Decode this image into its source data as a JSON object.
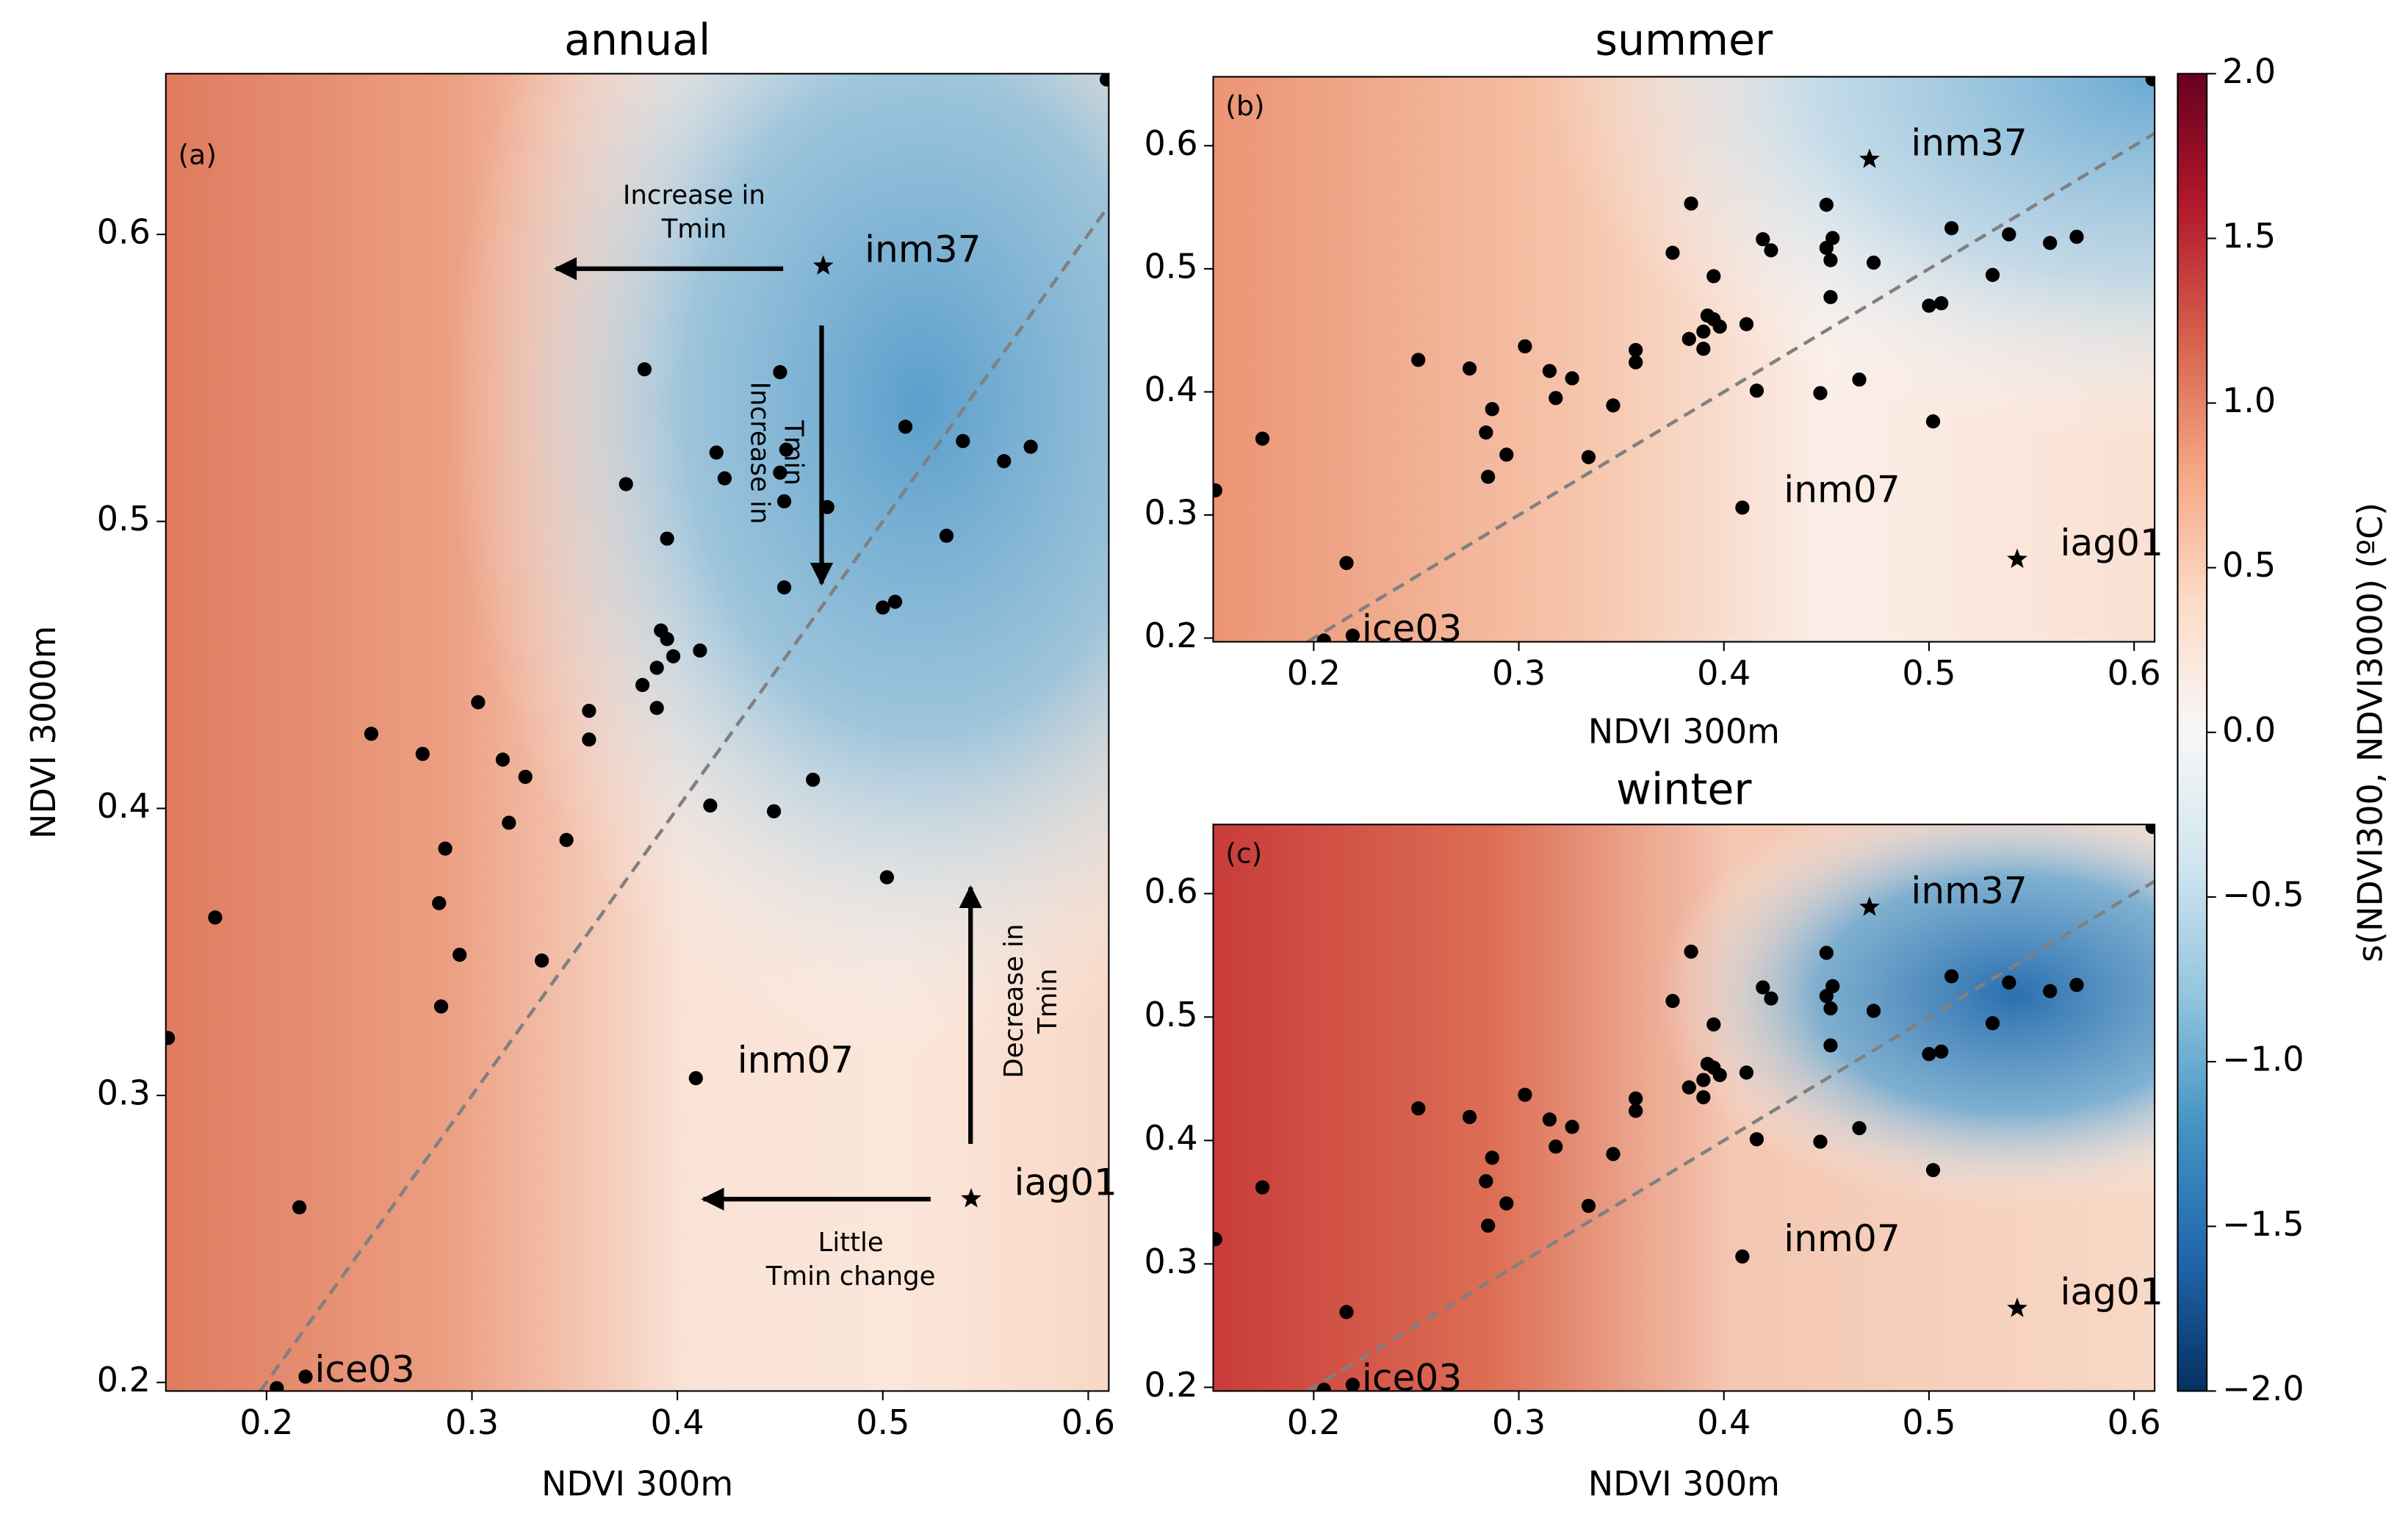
{
  "chart_data": [
    {
      "type": "scatter",
      "title": "annual",
      "panel_label": "(a)",
      "xlabel": "NDVI 300m",
      "ylabel": "NDVI 3000m",
      "xlim": [
        0.151,
        0.61
      ],
      "ylim": [
        0.197,
        0.656
      ],
      "xticks": [
        0.2,
        0.3,
        0.4,
        0.5,
        0.6
      ],
      "yticks": [
        0.2,
        0.3,
        0.4,
        0.5,
        0.6
      ],
      "color": "#000000",
      "diagonal": true,
      "x": [
        0.152,
        0.175,
        0.216,
        0.205,
        0.251,
        0.276,
        0.303,
        0.315,
        0.326,
        0.318,
        0.287,
        0.284,
        0.294,
        0.285,
        0.334,
        0.346,
        0.357,
        0.357,
        0.375,
        0.384,
        0.383,
        0.39,
        0.392,
        0.395,
        0.39,
        0.395,
        0.398,
        0.411,
        0.416,
        0.419,
        0.423,
        0.45,
        0.45,
        0.453,
        0.452,
        0.452,
        0.447,
        0.466,
        0.473,
        0.511,
        0.539,
        0.559,
        0.572,
        0.531,
        0.5,
        0.506,
        0.502,
        0.609
      ],
      "y": [
        0.32,
        0.362,
        0.261,
        0.198,
        0.426,
        0.419,
        0.437,
        0.417,
        0.411,
        0.395,
        0.386,
        0.367,
        0.349,
        0.331,
        0.347,
        0.389,
        0.434,
        0.424,
        0.513,
        0.553,
        0.443,
        0.449,
        0.462,
        0.459,
        0.435,
        0.494,
        0.453,
        0.455,
        0.401,
        0.524,
        0.515,
        0.552,
        0.517,
        0.525,
        0.507,
        0.477,
        0.399,
        0.41,
        0.505,
        0.533,
        0.528,
        0.521,
        0.526,
        0.495,
        0.47,
        0.472,
        0.376,
        0.654
      ],
      "labeled_points": [
        {
          "label": "inm37",
          "x": 0.471,
          "y": 0.589,
          "marker": "star"
        },
        {
          "label": "iag01",
          "x": 0.543,
          "y": 0.264,
          "marker": "star"
        },
        {
          "label": "inm07",
          "x": 0.409,
          "y": 0.306,
          "marker": "dot"
        },
        {
          "label": "ice03",
          "x": 0.219,
          "y": 0.202,
          "marker": "dot"
        }
      ],
      "annotations": [
        [
          "Increase in",
          "Tmin"
        ],
        [
          "Increase in",
          "Tmin"
        ],
        [
          "Decrease in",
          "Tmin"
        ],
        [
          "Little",
          "Tmin change"
        ]
      ]
    },
    {
      "type": "scatter",
      "title": "summer",
      "panel_label": "(b)",
      "xlabel": "NDVI 300m",
      "xlim": [
        0.151,
        0.61
      ],
      "ylim": [
        0.197,
        0.656
      ],
      "xticks": [
        0.2,
        0.3,
        0.4,
        0.5,
        0.6
      ],
      "yticks": [
        0.2,
        0.3,
        0.4,
        0.5,
        0.6
      ],
      "color": "#000000",
      "diagonal": true,
      "x": [
        0.152,
        0.175,
        0.216,
        0.205,
        0.251,
        0.276,
        0.303,
        0.315,
        0.326,
        0.318,
        0.287,
        0.284,
        0.294,
        0.285,
        0.334,
        0.346,
        0.357,
        0.357,
        0.375,
        0.384,
        0.383,
        0.39,
        0.392,
        0.395,
        0.39,
        0.395,
        0.398,
        0.411,
        0.416,
        0.419,
        0.423,
        0.45,
        0.45,
        0.453,
        0.452,
        0.452,
        0.447,
        0.466,
        0.473,
        0.511,
        0.539,
        0.559,
        0.572,
        0.531,
        0.5,
        0.506,
        0.502,
        0.609
      ],
      "y": [
        0.32,
        0.362,
        0.261,
        0.198,
        0.426,
        0.419,
        0.437,
        0.417,
        0.411,
        0.395,
        0.386,
        0.367,
        0.349,
        0.331,
        0.347,
        0.389,
        0.434,
        0.424,
        0.513,
        0.553,
        0.443,
        0.449,
        0.462,
        0.459,
        0.435,
        0.494,
        0.453,
        0.455,
        0.401,
        0.524,
        0.515,
        0.552,
        0.517,
        0.525,
        0.507,
        0.477,
        0.399,
        0.41,
        0.505,
        0.533,
        0.528,
        0.521,
        0.526,
        0.495,
        0.47,
        0.472,
        0.376,
        0.654
      ],
      "labeled_points": [
        {
          "label": "inm37",
          "x": 0.471,
          "y": 0.589,
          "marker": "star"
        },
        {
          "label": "iag01",
          "x": 0.543,
          "y": 0.264,
          "marker": "star"
        },
        {
          "label": "inm07",
          "x": 0.409,
          "y": 0.306,
          "marker": "dot"
        },
        {
          "label": "ice03",
          "x": 0.219,
          "y": 0.202,
          "marker": "dot"
        }
      ]
    },
    {
      "type": "scatter",
      "title": "winter",
      "panel_label": "(c)",
      "xlabel": "NDVI 300m",
      "xlim": [
        0.151,
        0.61
      ],
      "ylim": [
        0.197,
        0.656
      ],
      "xticks": [
        0.2,
        0.3,
        0.4,
        0.5,
        0.6
      ],
      "yticks": [
        0.2,
        0.3,
        0.4,
        0.5,
        0.6
      ],
      "color": "#000000",
      "diagonal": true,
      "x": [
        0.152,
        0.175,
        0.216,
        0.205,
        0.251,
        0.276,
        0.303,
        0.315,
        0.326,
        0.318,
        0.287,
        0.284,
        0.294,
        0.285,
        0.334,
        0.346,
        0.357,
        0.357,
        0.375,
        0.384,
        0.383,
        0.39,
        0.392,
        0.395,
        0.39,
        0.395,
        0.398,
        0.411,
        0.416,
        0.419,
        0.423,
        0.45,
        0.45,
        0.453,
        0.452,
        0.452,
        0.447,
        0.466,
        0.473,
        0.511,
        0.539,
        0.559,
        0.572,
        0.531,
        0.5,
        0.506,
        0.502,
        0.609
      ],
      "y": [
        0.32,
        0.362,
        0.261,
        0.198,
        0.426,
        0.419,
        0.437,
        0.417,
        0.411,
        0.395,
        0.386,
        0.367,
        0.349,
        0.331,
        0.347,
        0.389,
        0.434,
        0.424,
        0.513,
        0.553,
        0.443,
        0.449,
        0.462,
        0.459,
        0.435,
        0.494,
        0.453,
        0.455,
        0.401,
        0.524,
        0.515,
        0.552,
        0.517,
        0.525,
        0.507,
        0.477,
        0.399,
        0.41,
        0.505,
        0.533,
        0.528,
        0.521,
        0.526,
        0.495,
        0.47,
        0.472,
        0.376,
        0.654
      ],
      "labeled_points": [
        {
          "label": "inm37",
          "x": 0.471,
          "y": 0.589,
          "marker": "star"
        },
        {
          "label": "iag01",
          "x": 0.543,
          "y": 0.264,
          "marker": "star"
        },
        {
          "label": "inm07",
          "x": 0.409,
          "y": 0.306,
          "marker": "dot"
        },
        {
          "label": "ice03",
          "x": 0.219,
          "y": 0.202,
          "marker": "dot"
        }
      ]
    }
  ],
  "colorbar": {
    "label": "s(NDVI300, NDVI3000) (ºC)",
    "lim": [
      -2,
      2
    ],
    "ticks": [
      {
        "value": 2,
        "label": "2.0"
      },
      1.5,
      {
        "value": 1,
        "label": "1.0"
      },
      0.5,
      {
        "value": 0,
        "label": "0.0"
      },
      {
        "value": -0.5,
        "label": "−0.5"
      },
      {
        "value": -1,
        "label": "−1.0"
      },
      {
        "value": -1.5,
        "label": "−1.5"
      },
      {
        "value": -2,
        "label": "−2.0"
      }
    ]
  }
}
